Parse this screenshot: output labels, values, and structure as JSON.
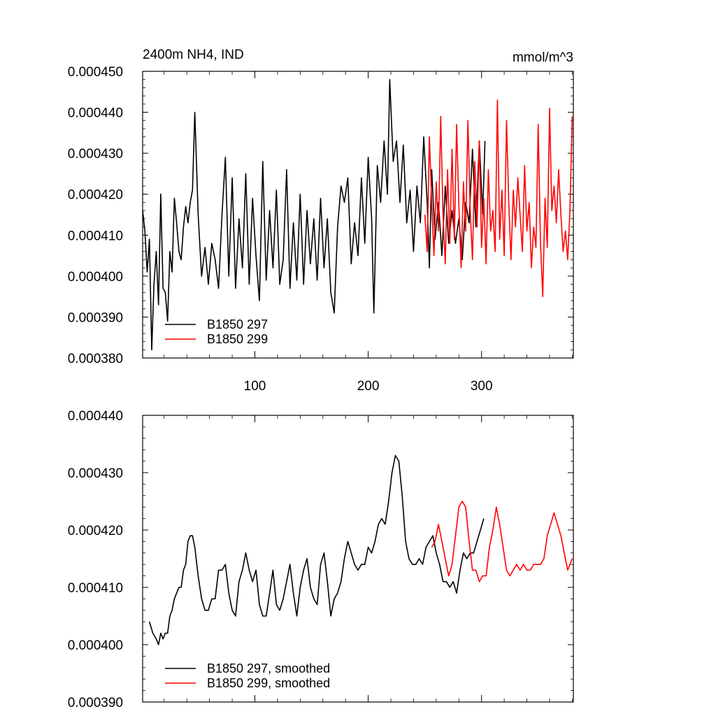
{
  "chart_data": [
    {
      "type": "line",
      "title_left": "2400m NH4, IND",
      "title_right": "mmol/m^3",
      "xlabel": "",
      "ylabel": "",
      "xlim": [
        1,
        381
      ],
      "ylim": [
        0.00038,
        0.00045
      ],
      "y_ticks": [
        "0.000380",
        "0.000390",
        "0.000400",
        "0.000410",
        "0.000420",
        "0.000430",
        "0.000440",
        "0.000450"
      ],
      "x_ticks": [
        "100",
        "200",
        "300"
      ],
      "legend": [
        "B1850 297",
        "B1850 299"
      ],
      "legend_position": "bottom-left",
      "series": [
        {
          "name": "B1850 297",
          "color": "#000000",
          "x": [
            1,
            3,
            5,
            7,
            9,
            11,
            13,
            15,
            17,
            19,
            21,
            23,
            25,
            27,
            29,
            31,
            33,
            35,
            37,
            39,
            41,
            43,
            45,
            47,
            50,
            53,
            56,
            59,
            62,
            65,
            68,
            71,
            74,
            77,
            80,
            83,
            86,
            89,
            92,
            95,
            98,
            101,
            104,
            107,
            110,
            113,
            116,
            119,
            122,
            125,
            128,
            131,
            134,
            137,
            140,
            143,
            146,
            149,
            152,
            155,
            158,
            161,
            164,
            167,
            170,
            173,
            176,
            179,
            182,
            185,
            188,
            191,
            194,
            197,
            200,
            203,
            205,
            208,
            211,
            214,
            217,
            219,
            222,
            225,
            228,
            231,
            234,
            237,
            240,
            243,
            246,
            249,
            252,
            254,
            256,
            259,
            262,
            265,
            268,
            271,
            274,
            277,
            280,
            283,
            286,
            289,
            292,
            295,
            298,
            301,
            303
          ],
          "y": [
            0.000416,
            0.000411,
            0.000401,
            0.000409,
            0.000382,
            0.000398,
            0.000406,
            0.000393,
            0.00042,
            0.000397,
            0.000396,
            0.000389,
            0.000406,
            0.000401,
            0.000419,
            0.000413,
            0.000406,
            0.000404,
            0.000412,
            0.000417,
            0.000413,
            0.000418,
            0.000421,
            0.00044,
            0.000415,
            0.0004,
            0.000407,
            0.000398,
            0.000408,
            0.000404,
            0.000397,
            0.000415,
            0.000429,
            0.0004,
            0.000424,
            0.000397,
            0.000414,
            0.000402,
            0.000425,
            0.000398,
            0.000419,
            0.000405,
            0.000394,
            0.000428,
            0.000399,
            0.000416,
            0.000402,
            0.000421,
            0.000398,
            0.000404,
            0.000426,
            0.000397,
            0.000413,
            0.000399,
            0.00042,
            0.000398,
            0.000416,
            0.000403,
            0.000414,
            0.000399,
            0.000419,
            0.000402,
            0.000414,
            0.000396,
            0.000391,
            0.000412,
            0.000422,
            0.000418,
            0.000424,
            0.000403,
            0.000413,
            0.000405,
            0.000424,
            0.000408,
            0.000429,
            0.000414,
            0.000391,
            0.000427,
            0.000418,
            0.000433,
            0.00042,
            0.000448,
            0.000428,
            0.000433,
            0.000418,
            0.000432,
            0.000413,
            0.000421,
            0.000406,
            0.000422,
            0.000413,
            0.000434,
            0.000418,
            0.000402,
            0.000426,
            0.000409,
            0.000418,
            0.000405,
            0.000422,
            0.000408,
            0.000416,
            0.000408,
            0.000414,
            0.000404,
            0.000418,
            0.000413,
            0.000431,
            0.000412,
            0.000433,
            0.000415,
            0.000433
          ]
        },
        {
          "name": "B1850 299",
          "color": "#ff0000",
          "x": [
            250,
            252,
            254,
            256,
            258,
            260,
            262,
            264,
            266,
            268,
            270,
            272,
            274,
            276,
            278,
            280,
            282,
            284,
            286,
            288,
            290,
            292,
            294,
            296,
            298,
            300,
            302,
            304,
            306,
            308,
            310,
            312,
            314,
            316,
            318,
            320,
            322,
            324,
            326,
            328,
            330,
            332,
            334,
            336,
            338,
            340,
            342,
            344,
            346,
            348,
            350,
            352,
            354,
            356,
            358,
            360,
            362,
            364,
            366,
            368,
            370,
            372,
            374,
            376,
            378,
            380
          ],
          "y": [
            0.000415,
            0.000406,
            0.000434,
            0.000418,
            0.000405,
            0.000423,
            0.000411,
            0.000439,
            0.000415,
            0.000403,
            0.000426,
            0.000408,
            0.000431,
            0.000409,
            0.000437,
            0.000417,
            0.000402,
            0.000423,
            0.000411,
            0.000438,
            0.000416,
            0.000404,
            0.000428,
            0.000412,
            0.000433,
            0.000407,
            0.000419,
            0.000403,
            0.000426,
            0.000411,
            0.000416,
            0.000406,
            0.000443,
            0.000409,
            0.000421,
            0.000405,
            0.000438,
            0.000418,
            0.000404,
            0.000421,
            0.000412,
            0.000424,
            0.000415,
            0.000406,
            0.000427,
            0.000411,
            0.000418,
            0.000402,
            0.000412,
            0.000407,
            0.000437,
            0.000408,
            0.000395,
            0.000419,
            0.000407,
            0.000441,
            0.000416,
            0.000422,
            0.000413,
            0.000426,
            0.000415,
            0.000406,
            0.000411,
            0.000404,
            0.000416,
            0.000439
          ]
        }
      ]
    },
    {
      "type": "line",
      "xlabel": "",
      "ylabel": "",
      "xlim": [
        1,
        381
      ],
      "ylim": [
        0.00039,
        0.00044
      ],
      "y_ticks": [
        "0.000390",
        "0.000400",
        "0.000410",
        "0.000420",
        "0.000430",
        "0.000440"
      ],
      "legend": [
        "B1850 297, smoothed",
        "B1850 299, smoothed"
      ],
      "legend_position": "bottom-left",
      "series": [
        {
          "name": "B1850 297, smoothed",
          "color": "#000000",
          "x": [
            7,
            10,
            13,
            15,
            17,
            19,
            21,
            23,
            25,
            27,
            29,
            31,
            33,
            35,
            37,
            39,
            41,
            43,
            45,
            47,
            50,
            53,
            56,
            59,
            62,
            65,
            68,
            71,
            74,
            77,
            80,
            83,
            86,
            89,
            92,
            95,
            98,
            101,
            104,
            107,
            110,
            113,
            116,
            119,
            122,
            125,
            128,
            131,
            134,
            137,
            140,
            143,
            146,
            149,
            152,
            155,
            158,
            161,
            164,
            167,
            170,
            173,
            176,
            179,
            182,
            185,
            188,
            191,
            194,
            197,
            200,
            203,
            206,
            209,
            212,
            215,
            218,
            221,
            224,
            227,
            230,
            233,
            236,
            239,
            242,
            245,
            248,
            251,
            254,
            257,
            260,
            263,
            266,
            269,
            272,
            275,
            278,
            281,
            284,
            287,
            290,
            293,
            296,
            299,
            302
          ],
          "y": [
            0.000404,
            0.000402,
            0.000401,
            0.0004,
            0.000402,
            0.000401,
            0.000402,
            0.000402,
            0.000405,
            0.000406,
            0.000408,
            0.000409,
            0.00041,
            0.00041,
            0.000413,
            0.000414,
            0.000418,
            0.000419,
            0.000419,
            0.000417,
            0.000412,
            0.000408,
            0.000406,
            0.000406,
            0.000408,
            0.000408,
            0.000413,
            0.000413,
            0.000414,
            0.000409,
            0.000406,
            0.000405,
            0.000411,
            0.000413,
            0.000416,
            0.000413,
            0.000411,
            0.000413,
            0.000407,
            0.000405,
            0.000405,
            0.000409,
            0.000413,
            0.000407,
            0.000406,
            0.000408,
            0.000411,
            0.000414,
            0.000409,
            0.000405,
            0.00041,
            0.000413,
            0.000415,
            0.00041,
            0.000408,
            0.000407,
            0.000414,
            0.000416,
            0.000411,
            0.000405,
            0.000408,
            0.000409,
            0.000411,
            0.000415,
            0.000418,
            0.000416,
            0.000414,
            0.000413,
            0.000414,
            0.000414,
            0.000417,
            0.000416,
            0.000418,
            0.000421,
            0.000422,
            0.000421,
            0.000425,
            0.00043,
            0.000433,
            0.000432,
            0.000426,
            0.000418,
            0.000415,
            0.000414,
            0.000414,
            0.000415,
            0.000414,
            0.000417,
            0.000418,
            0.000419,
            0.000416,
            0.000414,
            0.000411,
            0.000411,
            0.00041,
            0.000411,
            0.000409,
            0.000413,
            0.000416,
            0.000415,
            0.000416,
            0.000416,
            0.000418,
            0.00042,
            0.000422
          ]
        },
        {
          "name": "B1850 299, smoothed",
          "color": "#ff0000",
          "x": [
            256,
            259,
            262,
            265,
            268,
            271,
            274,
            277,
            280,
            283,
            286,
            289,
            292,
            295,
            298,
            301,
            304,
            307,
            310,
            313,
            316,
            319,
            322,
            325,
            328,
            331,
            334,
            337,
            340,
            343,
            346,
            349,
            352,
            355,
            358,
            361,
            364,
            367,
            370,
            373,
            376,
            378,
            380
          ],
          "y": [
            0.000417,
            0.000418,
            0.000421,
            0.000418,
            0.000415,
            0.000412,
            0.000414,
            0.000419,
            0.000424,
            0.000425,
            0.000424,
            0.000418,
            0.000413,
            0.000413,
            0.000411,
            0.000412,
            0.000412,
            0.000417,
            0.00042,
            0.000424,
            0.000421,
            0.000417,
            0.000413,
            0.000412,
            0.000413,
            0.000414,
            0.000413,
            0.000414,
            0.000413,
            0.000413,
            0.000414,
            0.000414,
            0.000414,
            0.000415,
            0.000419,
            0.000421,
            0.000423,
            0.000421,
            0.000419,
            0.000416,
            0.000413,
            0.000414,
            0.000415
          ]
        }
      ]
    }
  ]
}
